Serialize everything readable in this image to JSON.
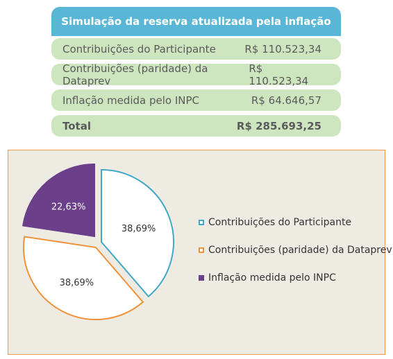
{
  "table": {
    "title": "Simulação da reserva atualizada pela inflação",
    "rows": [
      {
        "label": "Contribuições do Participante",
        "value": "R$ 110.523,34"
      },
      {
        "label": "Contribuições (paridade) da Dataprev",
        "value": "R$ 110.523,34"
      },
      {
        "label": "Inflação medida pelo INPC",
        "value": "R$ 64.646,57"
      }
    ],
    "total": {
      "label": "Total",
      "value": "R$ 285.693,25"
    }
  },
  "colors": {
    "header": "#5ab6d6",
    "row": "#cde6c0",
    "panel_bg": "#eeece2",
    "panel_border": "#ee9a4e"
  },
  "chart_data": {
    "type": "pie",
    "slices": [
      {
        "name": "Contribuições do Participante",
        "percent": 38.69,
        "label": "38,69%",
        "stroke": "#40a8c8",
        "fill": "#ffffff"
      },
      {
        "name": "Contribuições (paridade) da Dataprev",
        "percent": 38.69,
        "label": "38,69%",
        "stroke": "#f0923a",
        "fill": "#ffffff"
      },
      {
        "name": "Inflação medida pelo INPC",
        "percent": 22.63,
        "label": "22,63%",
        "stroke": "#6b3f8a",
        "fill": "#6b3f8a"
      }
    ],
    "legend_position": "right"
  }
}
